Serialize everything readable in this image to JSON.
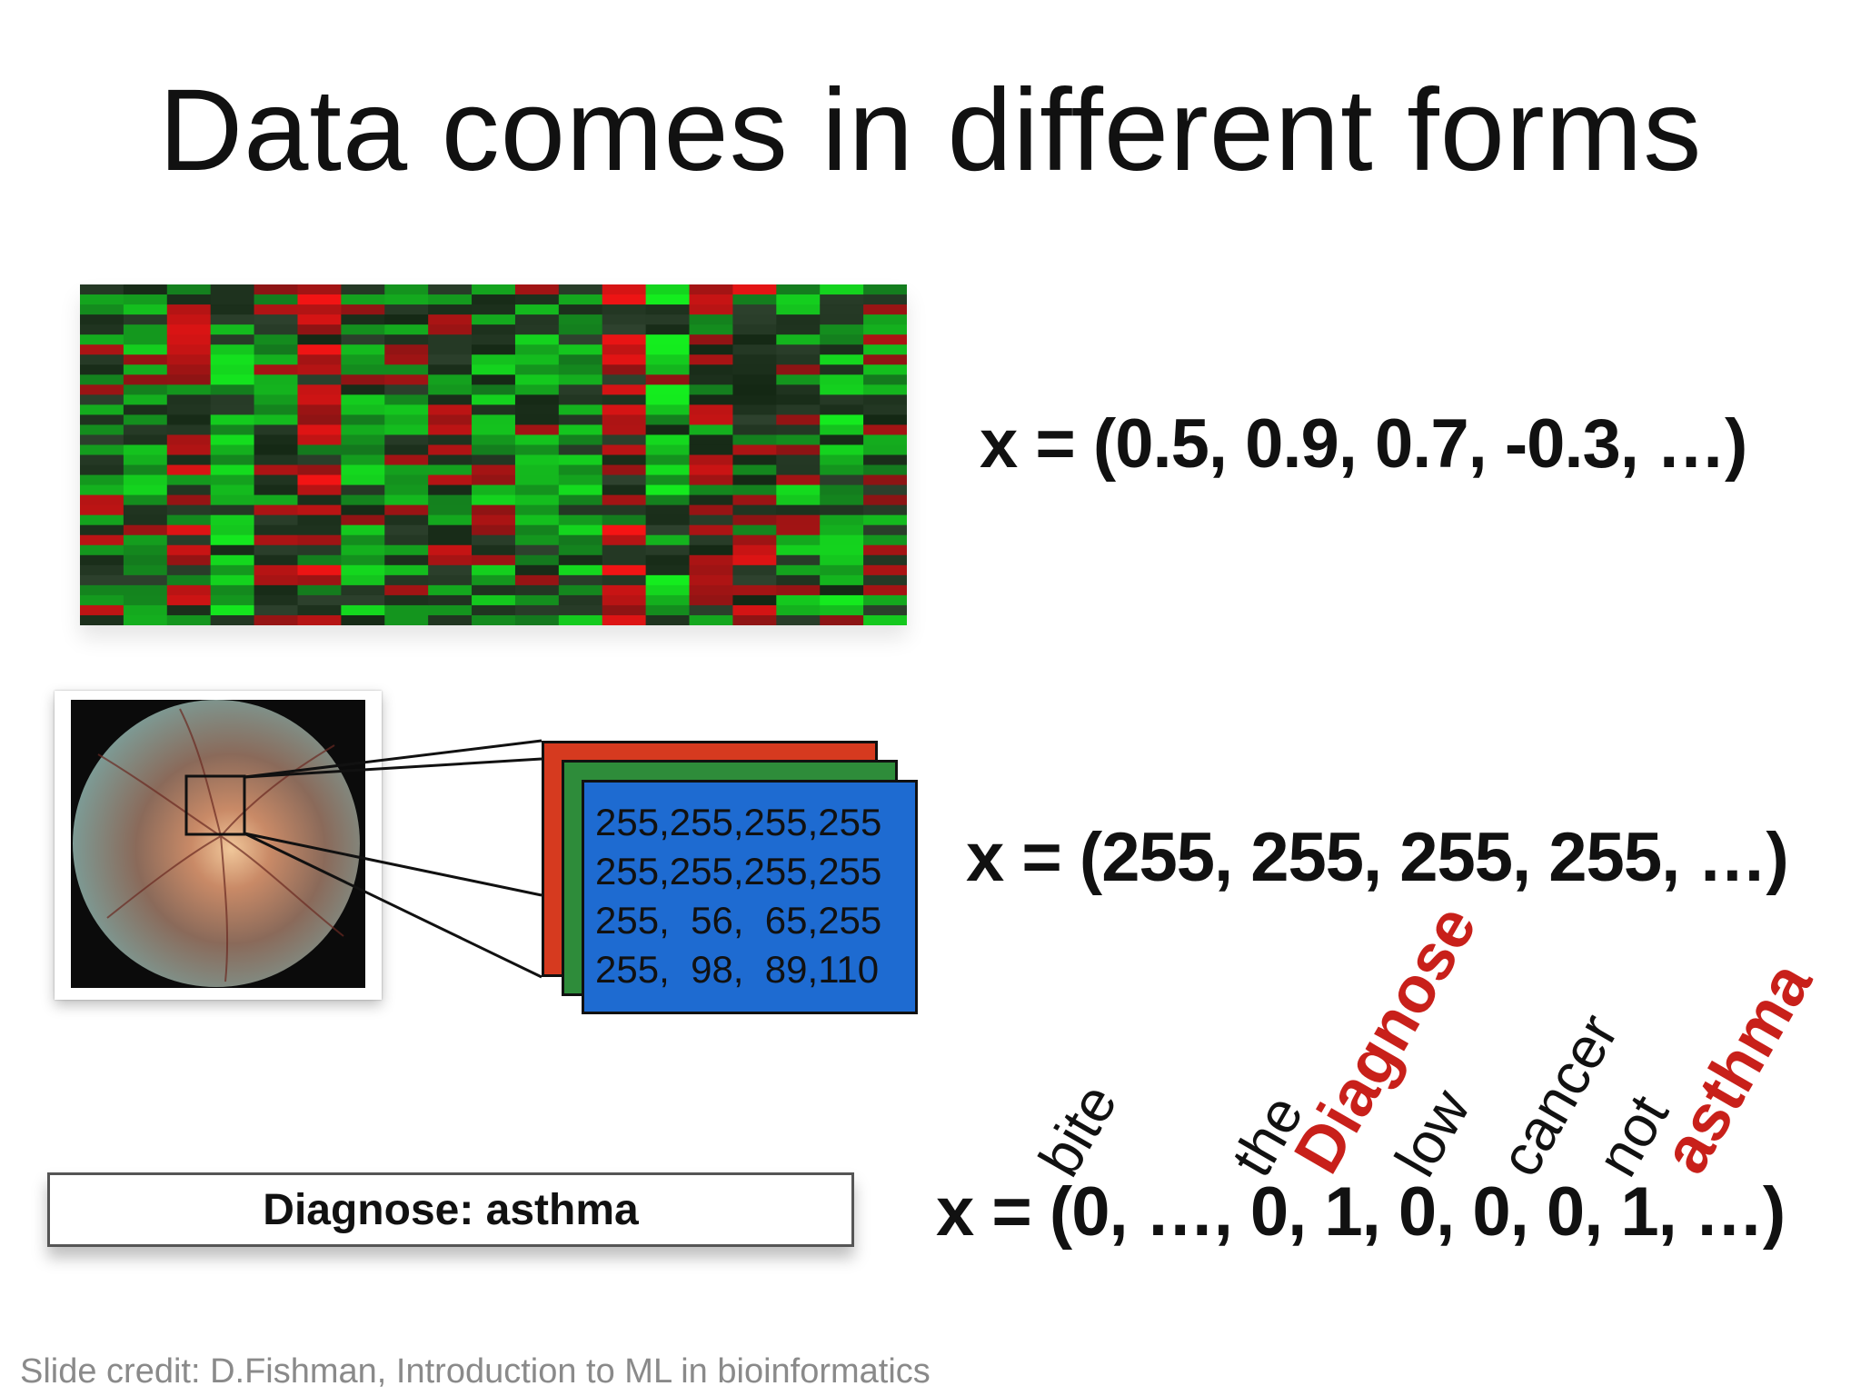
{
  "slide": {
    "title": "Data comes in different forms",
    "credit": "Slide credit: D.Fishman, Introduction to ML in bioinformatics"
  },
  "expression": {
    "formula": "x = (0.5, 0.9, 0.7, -0.3, …)"
  },
  "image": {
    "pixel_rows": [
      "255,255,255,255",
      "255,255,255,255",
      "255,  56,  65,255",
      "255,  98,  89,110"
    ],
    "formula": "x = (255, 255, 255, 255, …)",
    "channel_colors": {
      "red": "#d63a1f",
      "green": "#2e8c3a",
      "blue": "#1e6bd1"
    }
  },
  "text": {
    "box_label": "Diagnose: asthma",
    "words": [
      {
        "word": "bite",
        "highlight": false
      },
      {
        "word": "the",
        "highlight": false
      },
      {
        "word": "Diagnose",
        "highlight": true
      },
      {
        "word": "low",
        "highlight": false
      },
      {
        "word": "cancer",
        "highlight": false
      },
      {
        "word": "not",
        "highlight": false
      },
      {
        "word": "asthma",
        "highlight": true
      }
    ],
    "formula": "x = (0, …, 0, 1, 0, 0, 0, 1, …)",
    "highlight_color": "#c8201a"
  },
  "heatmap_colors": {
    "high": "#ff1a1a",
    "low": "#22e62a",
    "neutral": "#111111"
  }
}
